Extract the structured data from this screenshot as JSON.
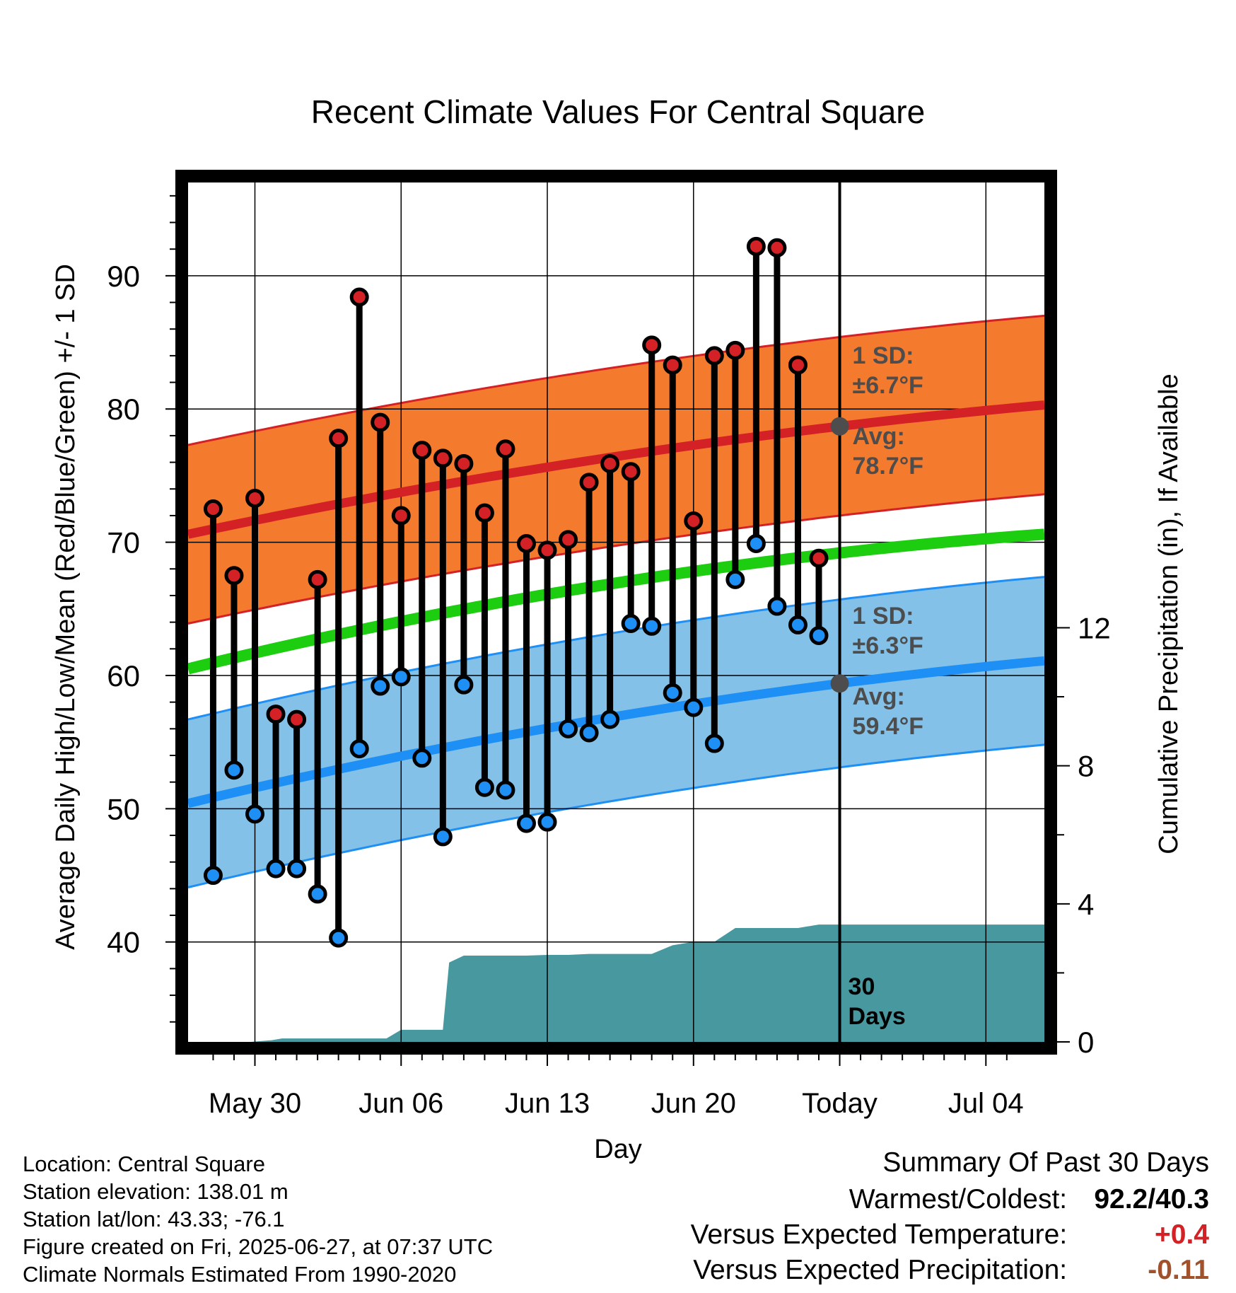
{
  "title": "Recent Climate Values For Central Square",
  "footer": {
    "location": "Location: Central Square",
    "elevation": "Station elevation: 138.01 m",
    "latlon": "Station lat/lon: 43.33; -76.1",
    "created": "Figure created on Fri, 2025-06-27, at 07:37 UTC",
    "normals": "Climate Normals Estimated From 1990-2020"
  },
  "summary": {
    "heading": "Summary Of Past 30 Days",
    "warm_cold_label": "Warmest/Coldest:",
    "warm_cold_value": "92.2/40.3",
    "temp_label": "Versus Expected Temperature:",
    "temp_value": "+0.4",
    "precip_label": "Versus Expected Precipitation:",
    "precip_value": "-0.11"
  },
  "chart_data": {
    "type": "line",
    "xlabel": "Day",
    "ylabel": "Average Daily High/Low/Mean (Red/Blue/Green) +/- 1 SD",
    "y2label": "Cumulative Precipitation (in), If Available",
    "x_ticks": [
      "May 30",
      "Jun 06",
      "Jun 13",
      "Jun 20",
      "Today",
      "Jul 04"
    ],
    "x_tick_days": [
      30,
      37,
      44,
      51,
      58,
      65
    ],
    "x_range_days": [
      26.8,
      67.8
    ],
    "ylim": [
      32.5,
      97
    ],
    "y_ticks": [
      40,
      50,
      60,
      70,
      80,
      90
    ],
    "y2lim": [
      0,
      24.9
    ],
    "y2_ticks": [
      0,
      4,
      8,
      12
    ],
    "grid": true,
    "today_day": 58,
    "today_label": "30\nDays",
    "normal_high": {
      "days": [
        26.8,
        58,
        67.8
      ],
      "mean": [
        70.6,
        78.7,
        80.3
      ],
      "sd": 6.7,
      "sd_label": "1 SD:",
      "sd_value": "±6.7°F",
      "avg_label": "Avg:",
      "avg_value": "78.7°F"
    },
    "normal_low": {
      "days": [
        26.8,
        58,
        67.8
      ],
      "mean": [
        50.4,
        59.4,
        61.1
      ],
      "sd": 6.3,
      "sd_label": "1 SD:",
      "sd_value": "±6.3°F",
      "avg_label": "Avg:",
      "avg_value": "59.4°F"
    },
    "normal_mean": {
      "days": [
        26.8,
        58,
        67.8
      ],
      "values": [
        60.5,
        69.2,
        70.6
      ]
    },
    "daily": {
      "days": [
        28,
        29,
        30,
        31,
        32,
        33,
        34,
        35,
        36,
        37,
        38,
        39,
        40,
        41,
        42,
        43,
        44,
        45,
        46,
        47,
        48,
        49,
        50,
        51,
        52,
        53,
        54,
        55,
        56,
        57
      ],
      "high": [
        72.5,
        67.5,
        73.3,
        57.1,
        56.7,
        67.2,
        77.8,
        88.4,
        79.0,
        72.0,
        76.9,
        76.3,
        75.9,
        72.2,
        77.0,
        69.9,
        69.4,
        70.2,
        74.5,
        75.9,
        75.3,
        84.8,
        83.3,
        71.6,
        84.0,
        84.4,
        92.2,
        92.1,
        83.3,
        68.8
      ],
      "low": [
        45.0,
        52.9,
        49.6,
        45.5,
        45.5,
        43.6,
        40.3,
        54.5,
        59.2,
        59.9,
        53.8,
        47.9,
        59.3,
        51.6,
        51.4,
        48.9,
        49.0,
        56.0,
        55.7,
        56.7,
        63.9,
        63.7,
        58.7,
        57.6,
        54.9,
        67.2,
        69.9,
        65.2,
        63.8,
        63.0
      ]
    },
    "precip_cumulative": {
      "days": [
        26.8,
        27.8,
        28.8,
        29.8,
        30.8,
        31.3,
        32.3,
        33.3,
        34.3,
        35.3,
        36.3,
        37.0,
        38.0,
        39.0,
        39.3,
        40.0,
        41.0,
        42.0,
        43.0,
        44.0,
        45.0,
        46.0,
        47.0,
        48.0,
        49.0,
        50.0,
        51.0,
        52.0,
        53.0,
        54.0,
        55.0,
        56.0,
        57.0,
        58.0,
        67.8
      ],
      "values": [
        0,
        0,
        0,
        0,
        0.05,
        0.1,
        0.1,
        0.1,
        0.1,
        0.1,
        0.1,
        0.35,
        0.35,
        0.35,
        2.3,
        2.5,
        2.5,
        2.5,
        2.5,
        2.52,
        2.52,
        2.55,
        2.55,
        2.55,
        2.55,
        2.8,
        2.9,
        2.9,
        3.3,
        3.3,
        3.3,
        3.3,
        3.4,
        3.4,
        3.4
      ]
    },
    "colors": {
      "high_band": "#f47a2e",
      "high_line": "#d42126",
      "high_edge": "#d42126",
      "low_band": "#84c1e8",
      "low_line": "#1e8ff5",
      "low_edge": "#1e8ff5",
      "mean_line": "#1dcd10",
      "precip": "#4898a0",
      "dot_high": "#d42126",
      "dot_low": "#1e8ff5",
      "label_gray": "#4d4d4d",
      "anomaly_temp": "#d42126",
      "anomaly_precip": "#a0522d"
    }
  }
}
